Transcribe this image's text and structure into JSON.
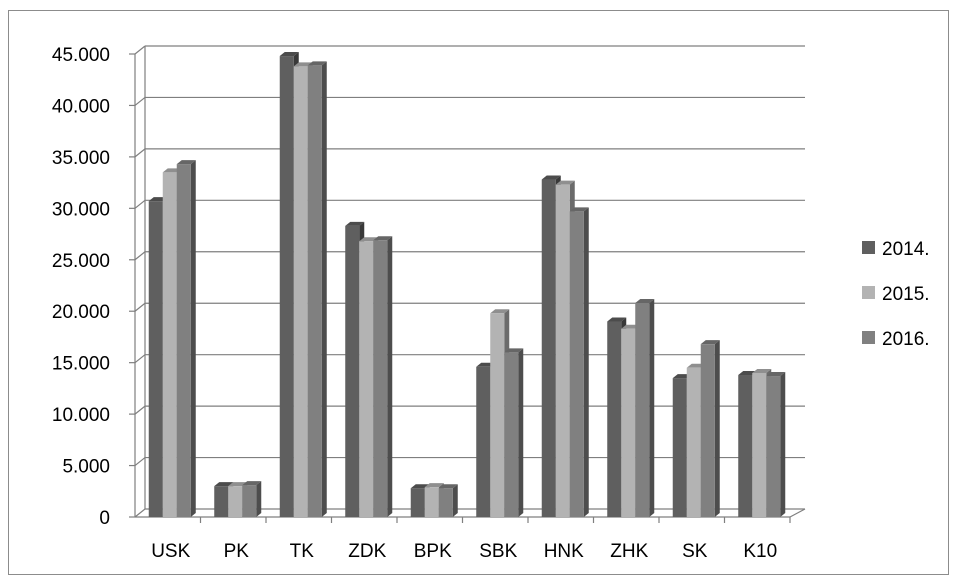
{
  "chart_data": {
    "type": "bar",
    "three_d": true,
    "categories": [
      "USK",
      "PK",
      "TK",
      "ZDK",
      "BPK",
      "SBK",
      "HNK",
      "ZHK",
      "SK",
      "K10"
    ],
    "series": [
      {
        "name": "2014.",
        "color": "#5f5f5f",
        "values": [
          30700,
          3000,
          44800,
          28300,
          2800,
          14600,
          32800,
          19000,
          13500,
          13800
        ]
      },
      {
        "name": "2015.",
        "color": "#b3b3b3",
        "values": [
          33500,
          3000,
          43800,
          26800,
          2900,
          19800,
          32300,
          18300,
          14500,
          14000
        ]
      },
      {
        "name": "2016.",
        "color": "#808080",
        "values": [
          34300,
          3100,
          43900,
          26900,
          2800,
          16000,
          29700,
          20800,
          16800,
          13700
        ]
      }
    ],
    "y_ticks": [
      "0",
      "5.000",
      "10.000",
      "15.000",
      "20.000",
      "25.000",
      "30.000",
      "35.000",
      "40.000",
      "45.000"
    ],
    "ylim": [
      0,
      45000
    ],
    "y_step": 5000,
    "grid": true,
    "legend_position": "right",
    "title": "",
    "xlabel": "",
    "ylabel": ""
  }
}
